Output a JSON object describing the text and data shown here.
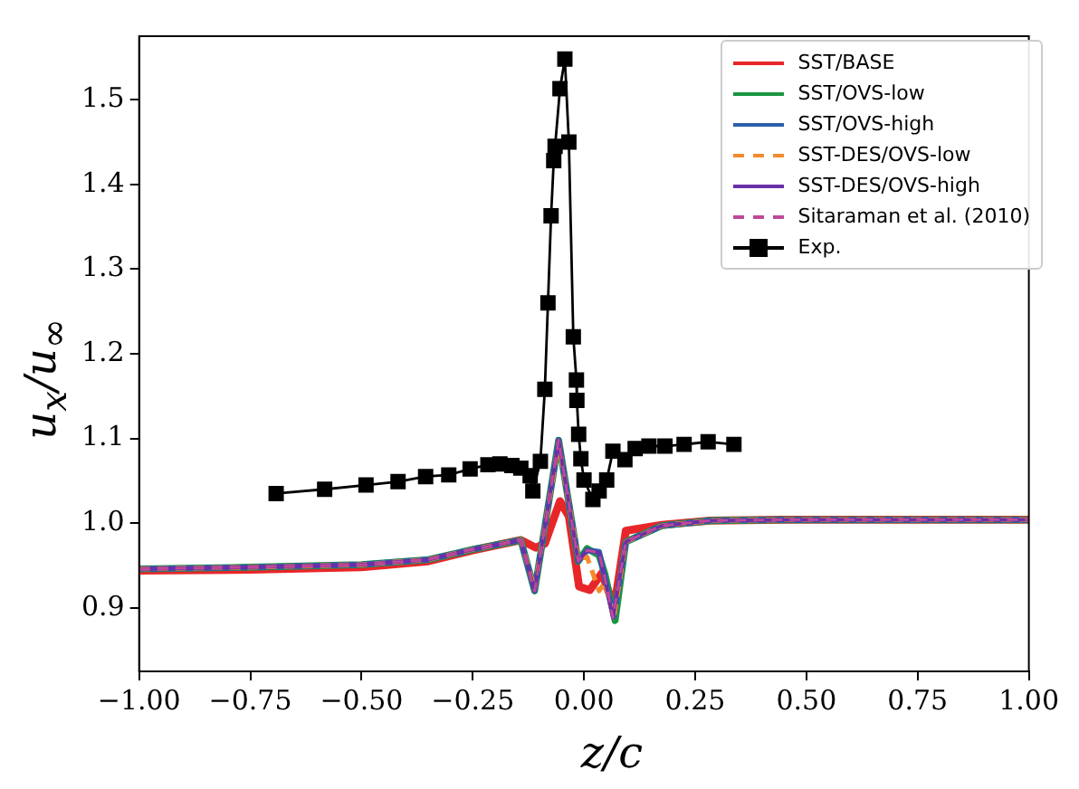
{
  "chart_data": {
    "type": "line",
    "xlabel": "z/c",
    "ylabel": "u$_{x}$/u$_{∞}$",
    "xlim": [
      -1,
      1
    ],
    "ylim": [
      0.825,
      1.575
    ],
    "xticks": [
      {
        "value": -1,
        "label": "−1.00"
      },
      {
        "value": -0.75,
        "label": "−0.75"
      },
      {
        "value": -0.5,
        "label": "−0.50"
      },
      {
        "value": -0.25,
        "label": "−0.25"
      },
      {
        "value": 0,
        "label": "0.00"
      },
      {
        "value": 0.25,
        "label": "0.25"
      },
      {
        "value": 0.5,
        "label": "0.50"
      },
      {
        "value": 0.75,
        "label": "0.75"
      },
      {
        "value": 1,
        "label": "1.00"
      }
    ],
    "yticks": [
      {
        "value": 0.9,
        "label": "0.9"
      },
      {
        "value": 1.0,
        "label": "1.0"
      },
      {
        "value": 1.1,
        "label": "1.1"
      },
      {
        "value": 1.2,
        "label": "1.2"
      },
      {
        "value": 1.3,
        "label": "1.3"
      },
      {
        "value": 1.4,
        "label": "1.4"
      },
      {
        "value": 1.5,
        "label": "1.5"
      }
    ],
    "grid": false,
    "legend": "top right",
    "series": [
      {
        "name": "SST/BASE",
        "color": "#e8262a",
        "line_style": "solid",
        "marker": "none",
        "x": [
          -1,
          -0.75,
          -0.5,
          -0.35,
          -0.25,
          -0.142,
          -0.108,
          -0.088,
          -0.054,
          -0.034,
          -0.011,
          0.013,
          0.04,
          0.061,
          0.07,
          0.094,
          0.175,
          0.283,
          0.445,
          0.7,
          1
        ],
        "values": [
          0.944,
          0.945,
          0.948,
          0.955,
          0.968,
          0.98,
          0.971,
          0.976,
          1.026,
          1.008,
          0.925,
          0.921,
          0.941,
          0.911,
          0.908,
          0.991,
          0.998,
          1.003,
          1.004,
          1.004,
          1.004
        ]
      },
      {
        "name": "SST/OVS-low",
        "color": "#1a9641",
        "line_style": "solid",
        "marker": "none",
        "x": [
          -1,
          -0.75,
          -0.5,
          -0.35,
          -0.25,
          -0.142,
          -0.111,
          -0.057,
          -0.013,
          0.007,
          0.034,
          0.047,
          0.07,
          0.094,
          0.175,
          0.283,
          0.445,
          0.7,
          1
        ],
        "values": [
          0.946,
          0.948,
          0.951,
          0.957,
          0.969,
          0.98,
          0.92,
          1.098,
          0.955,
          0.97,
          0.962,
          0.94,
          0.885,
          0.978,
          0.997,
          1.003,
          1.004,
          1.004,
          1.004
        ]
      },
      {
        "name": "SST/OVS-high",
        "color": "#2c5fa8",
        "line_style": "solid",
        "marker": "none",
        "x": [
          -1,
          -0.75,
          -0.5,
          -0.35,
          -0.25,
          -0.142,
          -0.111,
          -0.057,
          -0.013,
          0.007,
          0.034,
          0.047,
          0.067,
          0.094,
          0.175,
          0.283,
          0.445,
          0.7,
          1
        ],
        "values": [
          0.946,
          0.948,
          0.951,
          0.957,
          0.969,
          0.98,
          0.92,
          1.098,
          0.955,
          0.968,
          0.966,
          0.935,
          0.89,
          0.978,
          0.997,
          1.003,
          1.004,
          1.004,
          1.004
        ]
      },
      {
        "name": "SST-DES/OVS-low",
        "color": "#f58a2c",
        "line_style": "dashed",
        "marker": "none",
        "x": [
          -1,
          -0.75,
          -0.5,
          -0.35,
          -0.25,
          -0.142,
          -0.111,
          -0.057,
          -0.013,
          0.007,
          0.034,
          0.047,
          0.067,
          0.094,
          0.175,
          0.283,
          0.445,
          0.7,
          1
        ],
        "values": [
          0.946,
          0.948,
          0.951,
          0.957,
          0.969,
          0.98,
          0.922,
          1.095,
          0.958,
          0.96,
          0.92,
          0.93,
          0.888,
          0.978,
          0.997,
          1.003,
          1.004,
          1.004,
          1.004
        ]
      },
      {
        "name": "SST-DES/OVS-high",
        "color": "#6a2fa8",
        "line_style": "solid",
        "marker": "none",
        "x": [
          -1,
          -0.75,
          -0.5,
          -0.35,
          -0.25,
          -0.142,
          -0.111,
          -0.057,
          -0.013,
          0.007,
          0.034,
          0.047,
          0.065,
          0.094,
          0.175,
          0.283,
          0.445,
          0.7,
          1
        ],
        "values": [
          0.946,
          0.948,
          0.951,
          0.957,
          0.969,
          0.98,
          0.92,
          1.098,
          0.955,
          0.968,
          0.965,
          0.935,
          0.888,
          0.978,
          0.997,
          1.003,
          1.004,
          1.004,
          1.004
        ]
      },
      {
        "name": "Sitaraman et al. (2010)",
        "color": "#c0489a",
        "line_style": "dashed",
        "marker": "none",
        "x": [
          -1,
          -0.75,
          -0.5,
          -0.35,
          -0.25,
          -0.142,
          -0.111,
          -0.057,
          -0.013,
          0.007,
          0.034,
          0.047,
          0.065,
          0.094,
          0.175,
          0.283,
          0.445,
          0.7,
          1
        ],
        "values": [
          0.946,
          0.948,
          0.951,
          0.957,
          0.969,
          0.98,
          0.92,
          1.098,
          0.955,
          0.968,
          0.965,
          0.935,
          0.888,
          0.978,
          0.997,
          1.003,
          1.004,
          1.004,
          1.004
        ]
      },
      {
        "name": "Exp.",
        "color": "#000000",
        "line_style": "solid",
        "marker": "square",
        "x": [
          -0.692,
          -0.583,
          -0.49,
          -0.418,
          -0.356,
          -0.304,
          -0.256,
          -0.216,
          -0.189,
          -0.162,
          -0.142,
          -0.121,
          -0.115,
          -0.098,
          -0.088,
          -0.081,
          -0.074,
          -0.068,
          -0.065,
          -0.054,
          -0.043,
          -0.034,
          -0.024,
          -0.017,
          -0.016,
          -0.012,
          -0.007,
          0,
          0.02,
          0.034,
          0.051,
          0.065,
          0.092,
          0.115,
          0.146,
          0.182,
          0.225,
          0.279,
          0.337
        ],
        "values": [
          1.035,
          1.04,
          1.045,
          1.049,
          1.055,
          1.057,
          1.064,
          1.069,
          1.07,
          1.068,
          1.065,
          1.056,
          1.038,
          1.073,
          1.158,
          1.26,
          1.363,
          1.428,
          1.445,
          1.513,
          1.548,
          1.45,
          1.22,
          1.169,
          1.145,
          1.105,
          1.076,
          1.051,
          1.028,
          1.038,
          1.051,
          1.085,
          1.075,
          1.088,
          1.091,
          1.091,
          1.093,
          1.096,
          1.093
        ]
      }
    ]
  }
}
